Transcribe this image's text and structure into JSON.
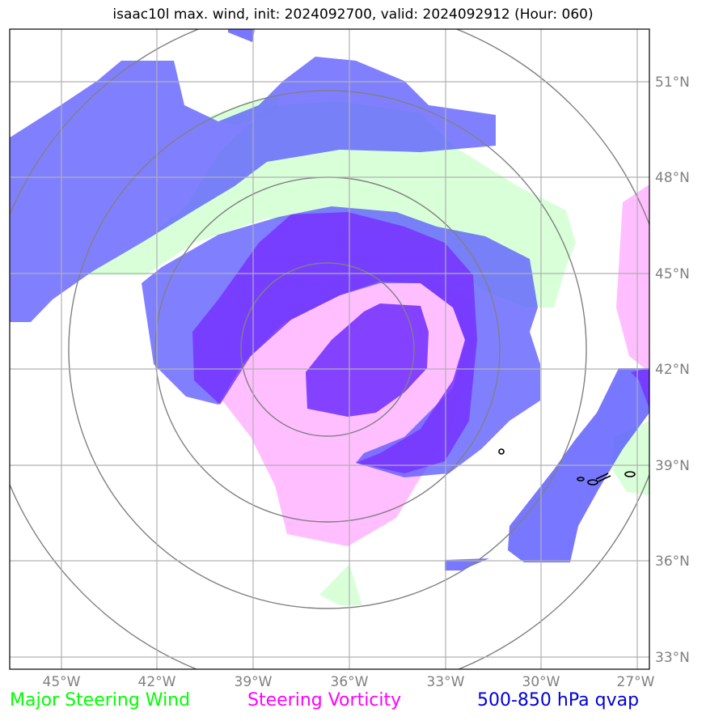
{
  "title": "isaac10l max. wind, init: 2024092700, valid: 2024092912 (Hour: 060)",
  "latitude_labels": [
    "51°N",
    "48°N",
    "45°N",
    "42°N",
    "39°N",
    "36°N",
    "33°N"
  ],
  "longitude_labels": [
    "45°W",
    "42°W",
    "39°W",
    "36°W",
    "33°W",
    "30°W",
    "27°W"
  ],
  "legend": {
    "wind": "Major Steering Wind",
    "vorticity": "Steering Vorticity",
    "qvap": "500-850 hPa qvap"
  },
  "colors": {
    "wind": "#ccffcc",
    "vorticity": "#ffb3ff",
    "qvap_low": "#6666ff",
    "qvap_high": "#7733ff",
    "grid": "#b0b0b0",
    "rings": "#808080"
  }
}
